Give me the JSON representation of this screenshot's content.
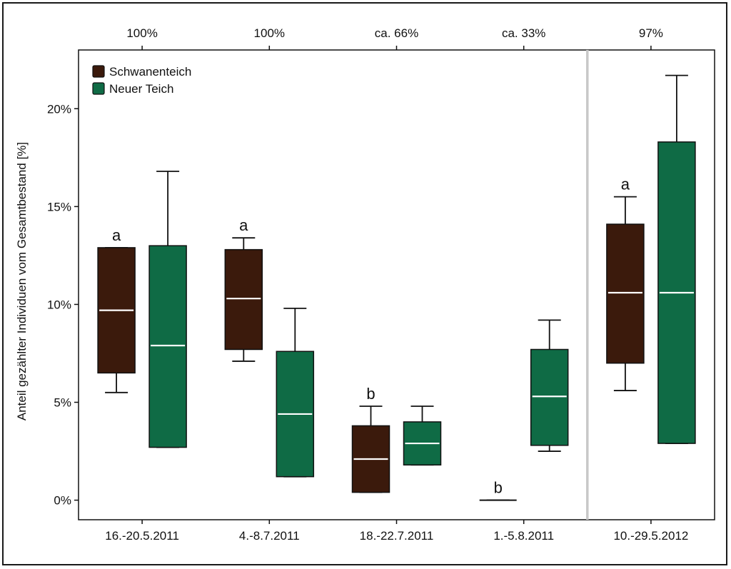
{
  "chart_data": {
    "type": "box",
    "ylabel": "Anteil gezählter Individuen vom Gesamtbestand [%]",
    "y_ticks": [
      0,
      5,
      10,
      15,
      20
    ],
    "y_tick_labels": [
      "0%",
      "5%",
      "10%",
      "15%",
      "20%"
    ],
    "ylim": [
      -1,
      23
    ],
    "categories": [
      "16.-20.5.2011",
      "4.-8.7.2011",
      "18.-22.7.2011",
      "1.-5.8.2011",
      "10.-29.5.2012"
    ],
    "top_labels": [
      "100%",
      "100%",
      "ca. 66%",
      "ca. 33%",
      "97%"
    ],
    "significance_labels": [
      "a",
      "a",
      "b",
      "b",
      "a"
    ],
    "separator_after_category": 4,
    "series": [
      {
        "name": "Schwanenteich",
        "color": "#3b1a0c",
        "boxes": [
          {
            "min": 5.5,
            "q1": 6.5,
            "median": 9.7,
            "q3": 12.9,
            "max": 12.9
          },
          {
            "min": 7.1,
            "q1": 7.7,
            "median": 10.3,
            "q3": 12.8,
            "max": 13.4
          },
          {
            "min": 0.4,
            "q1": 0.4,
            "median": 2.1,
            "q3": 3.8,
            "max": 4.8
          },
          {
            "min": 0.0,
            "q1": 0.0,
            "median": 0.0,
            "q3": 0.0,
            "max": 0.0
          },
          {
            "min": 5.6,
            "q1": 7.0,
            "median": 10.6,
            "q3": 14.1,
            "max": 15.5
          }
        ]
      },
      {
        "name": "Neuer Teich",
        "color": "#0f6b45",
        "boxes": [
          {
            "min": 2.7,
            "q1": 2.7,
            "median": 7.9,
            "q3": 13.0,
            "max": 16.8
          },
          {
            "min": 1.2,
            "q1": 1.2,
            "median": 4.4,
            "q3": 7.6,
            "max": 9.8
          },
          {
            "min": 1.8,
            "q1": 1.8,
            "median": 2.9,
            "q3": 4.0,
            "max": 4.8
          },
          {
            "min": 2.5,
            "q1": 2.8,
            "median": 5.3,
            "q3": 7.7,
            "max": 9.2
          },
          {
            "min": 2.9,
            "q1": 2.9,
            "median": 10.6,
            "q3": 18.3,
            "max": 21.7
          }
        ]
      }
    ],
    "legend_position": "top-left",
    "grid": false,
    "median_line_color": "#ffffff",
    "separator_color": "#c8c8c8"
  }
}
